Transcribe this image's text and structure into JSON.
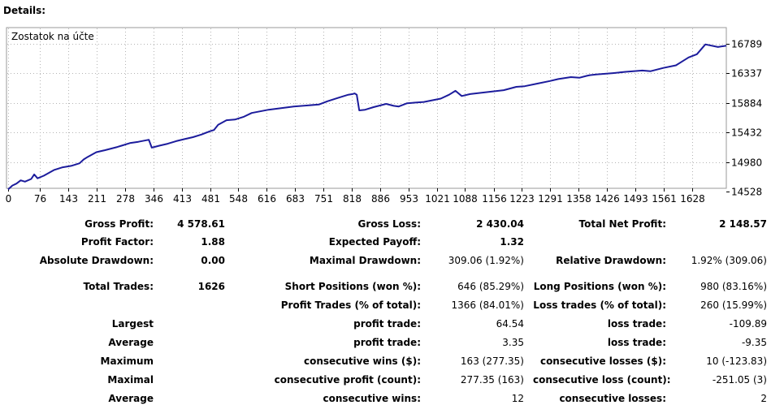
{
  "heading": "Details:",
  "chart_data": {
    "type": "line",
    "title": "Zostatok na účte",
    "x_ticks": [
      "0",
      "76",
      "143",
      "211",
      "278",
      "346",
      "413",
      "481",
      "548",
      "616",
      "683",
      "751",
      "818",
      "886",
      "953",
      "1021",
      "1088",
      "1156",
      "1223",
      "1291",
      "1358",
      "1426",
      "1493",
      "1561",
      "1628"
    ],
    "y_ticks": [
      "16789",
      "16337",
      "15884",
      "15432",
      "14980",
      "14528"
    ],
    "ylim": [
      14528,
      16789
    ],
    "xlim": [
      0,
      1710
    ],
    "grid": true,
    "series": [
      {
        "color": "#1c1c9c",
        "x": [
          0,
          10,
          20,
          30,
          40,
          55,
          62,
          70,
          85,
          110,
          130,
          150,
          170,
          180,
          190,
          210,
          230,
          260,
          270,
          290,
          310,
          335,
          342,
          348,
          360,
          380,
          400,
          420,
          440,
          460,
          480,
          490,
          500,
          520,
          540,
          560,
          580,
          620,
          680,
          740,
          760,
          785,
          795,
          810,
          820,
          825,
          830,
          836,
          850,
          870,
          900,
          918,
          930,
          950,
          990,
          1030,
          1050,
          1065,
          1080,
          1100,
          1140,
          1180,
          1210,
          1230,
          1260,
          1290,
          1310,
          1340,
          1360,
          1378,
          1385,
          1400,
          1440,
          1470,
          1510,
          1530,
          1560,
          1590,
          1605,
          1620,
          1640,
          1660,
          1690,
          1710
        ],
        "y": [
          14560,
          14620,
          14650,
          14700,
          14680,
          14720,
          14790,
          14730,
          14770,
          14860,
          14900,
          14920,
          14960,
          15020,
          15060,
          15130,
          15160,
          15210,
          15230,
          15270,
          15290,
          15320,
          15200,
          15210,
          15230,
          15260,
          15300,
          15330,
          15360,
          15400,
          15450,
          15470,
          15550,
          15620,
          15630,
          15670,
          15730,
          15780,
          15830,
          15860,
          15910,
          15960,
          15980,
          16010,
          16020,
          16030,
          16010,
          15770,
          15780,
          15820,
          15870,
          15840,
          15830,
          15880,
          15900,
          15950,
          16010,
          16070,
          15990,
          16020,
          16050,
          16080,
          16130,
          16140,
          16180,
          16220,
          16250,
          16280,
          16270,
          16300,
          16310,
          16320,
          16340,
          16360,
          16380,
          16370,
          16420,
          16460,
          16520,
          16580,
          16630,
          16780,
          16740,
          16760
        ]
      }
    ]
  },
  "stats": [
    {
      "text": "Gross Profit:",
      "bold": true
    },
    {
      "text": "4 578.61",
      "bold": true
    },
    {
      "text": "Gross Loss:",
      "bold": true
    },
    {
      "text": "2 430.04",
      "bold": true
    },
    {
      "text": "Total Net Profit:",
      "bold": true
    },
    {
      "text": "2 148.57",
      "bold": true
    },
    {
      "text": "Profit Factor:",
      "bold": true
    },
    {
      "text": "1.88",
      "bold": true
    },
    {
      "text": "Expected Payoff:",
      "bold": true
    },
    {
      "text": "1.32",
      "bold": true
    },
    {
      "text": "Absolute Drawdown:",
      "bold": true
    },
    {
      "text": "0.00",
      "bold": true
    },
    {
      "text": "Maximal Drawdown:",
      "bold": true
    },
    {
      "text": "309.06 (1.92%)",
      "bold": false
    },
    {
      "text": "Relative Drawdown:",
      "bold": true
    },
    {
      "text": "1.92% (309.06)",
      "bold": false
    },
    {
      "text": "Total Trades:",
      "bold": true
    },
    {
      "text": "1626",
      "bold": true
    },
    {
      "text": "Short Positions (won %):",
      "bold": true
    },
    {
      "text": "646 (85.29%)",
      "bold": false
    },
    {
      "text": "Long Positions (won %):",
      "bold": true
    },
    {
      "text": "980 (83.16%)",
      "bold": false
    },
    {
      "text": "Profit Trades (% of total):",
      "bold": true
    },
    {
      "text": "1366 (84.01%)",
      "bold": false
    },
    {
      "text": "Loss trades (% of total):",
      "bold": true
    },
    {
      "text": "260 (15.99%)",
      "bold": false
    },
    {
      "text": "Largest",
      "bold": true
    },
    {
      "text": "profit trade:",
      "bold": true
    },
    {
      "text": "64.54",
      "bold": false
    },
    {
      "text": "loss trade:",
      "bold": true
    },
    {
      "text": "-109.89",
      "bold": false
    },
    {
      "text": "Average",
      "bold": true
    },
    {
      "text": "profit trade:",
      "bold": true
    },
    {
      "text": "3.35",
      "bold": false
    },
    {
      "text": "loss trade:",
      "bold": true
    },
    {
      "text": "-9.35",
      "bold": false
    },
    {
      "text": "Maximum",
      "bold": true
    },
    {
      "text": "consecutive wins ($):",
      "bold": true
    },
    {
      "text": "163 (277.35)",
      "bold": false
    },
    {
      "text": "consecutive losses ($):",
      "bold": true
    },
    {
      "text": "10 (-123.83)",
      "bold": false
    },
    {
      "text": "Maximal",
      "bold": true
    },
    {
      "text": "consecutive profit (count):",
      "bold": true
    },
    {
      "text": "277.35 (163)",
      "bold": false
    },
    {
      "text": "consecutive loss (count):",
      "bold": true
    },
    {
      "text": "-251.05 (3)",
      "bold": false
    },
    {
      "text": "Average",
      "bold": true
    },
    {
      "text": "consecutive wins:",
      "bold": true
    },
    {
      "text": "12",
      "bold": false
    },
    {
      "text": "consecutive losses:",
      "bold": true
    },
    {
      "text": "2",
      "bold": false
    }
  ]
}
